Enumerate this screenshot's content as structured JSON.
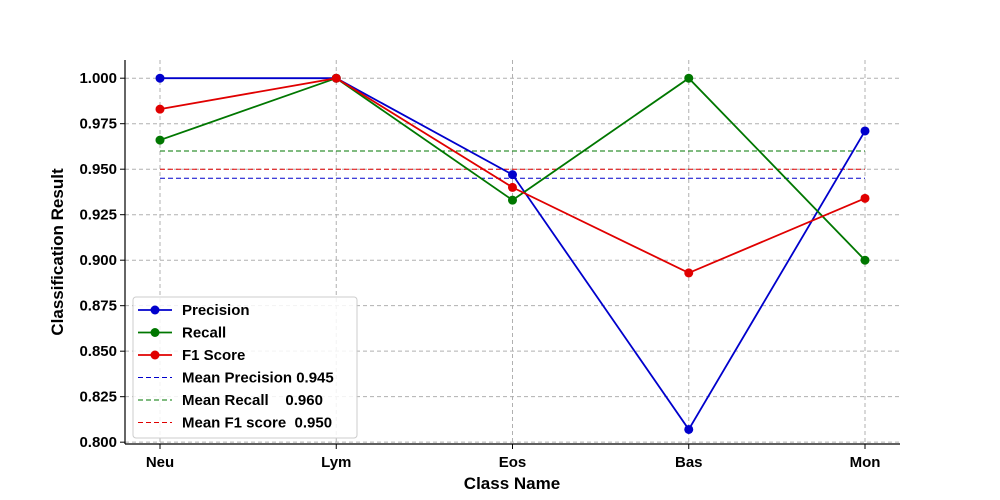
{
  "chart_data": {
    "type": "line",
    "title": "",
    "xlabel": "Class Name",
    "ylabel": "Classification Result",
    "categories": [
      "Neu",
      "Lym",
      "Eos",
      "Bas",
      "Mon"
    ],
    "ylim": [
      0.799,
      1.01
    ],
    "yticks": [
      0.8,
      0.825,
      0.85,
      0.875,
      0.9,
      0.925,
      0.95,
      0.975,
      1.0
    ],
    "ytick_labels": [
      "0.800",
      "0.825",
      "0.850",
      "0.875",
      "0.900",
      "0.925",
      "0.950",
      "0.975",
      "1.000"
    ],
    "grid": true,
    "legend_position": "lower-left",
    "series": [
      {
        "name": "Precision",
        "color": "#0000cc",
        "style": "solid-marker",
        "values": [
          1.0,
          1.0,
          0.947,
          0.807,
          0.971
        ]
      },
      {
        "name": "Recall",
        "color": "#007700",
        "style": "solid-marker",
        "values": [
          0.966,
          1.0,
          0.933,
          1.0,
          0.9
        ]
      },
      {
        "name": "F1 Score",
        "color": "#e00000",
        "style": "solid-marker",
        "values": [
          0.983,
          1.0,
          0.94,
          0.893,
          0.934
        ]
      }
    ],
    "mean_lines": [
      {
        "name": "Mean Precision 0.945",
        "color": "#0000cc",
        "value": 0.945
      },
      {
        "name": "Mean Recall    0.960",
        "color": "#007700",
        "value": 0.96
      },
      {
        "name": "Mean F1 score  0.950",
        "color": "#e00000",
        "value": 0.95
      }
    ]
  }
}
